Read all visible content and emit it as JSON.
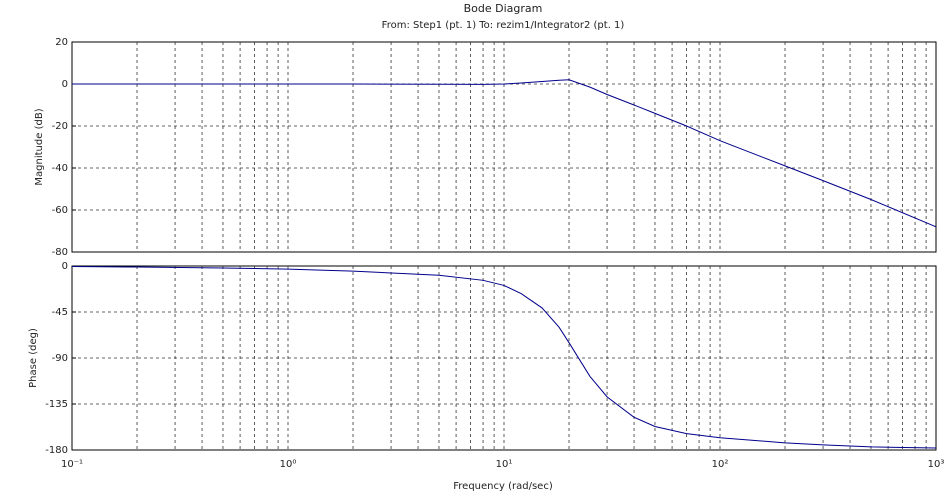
{
  "chart_data": [
    {
      "type": "line",
      "title": "Bode Diagram",
      "subtitle": "From: Step1 (pt. 1)  To: rezim1/Integrator2 (pt. 1)",
      "ylabel": "Magnitude (dB)",
      "xscale": "log",
      "grid": true,
      "color": "#00008b",
      "x": [
        0.1,
        0.2,
        0.5,
        1,
        2,
        5,
        8,
        10,
        12,
        15,
        18,
        20,
        25,
        30,
        40,
        50,
        70,
        100,
        200,
        300,
        500,
        1000
      ],
      "values": [
        0,
        0,
        0,
        0,
        0,
        -0.1,
        -0.2,
        0,
        0.5,
        1.2,
        1.8,
        2,
        -1.5,
        -5,
        -10,
        -14,
        -20,
        -27,
        -39,
        -46,
        -55,
        -68
      ],
      "xlim": [
        0.1,
        1000
      ],
      "ylim": [
        -80,
        20
      ],
      "yticks": [
        20,
        0,
        -20,
        -40,
        -60,
        -80
      ]
    },
    {
      "type": "line",
      "ylabel": "Phase (deg)",
      "xlabel": "Frequency  (rad/sec)",
      "xscale": "log",
      "grid": true,
      "color": "#00008b",
      "x": [
        0.1,
        0.2,
        0.5,
        1,
        2,
        5,
        8,
        10,
        12,
        15,
        18,
        20,
        25,
        30,
        40,
        50,
        70,
        100,
        200,
        300,
        500,
        1000
      ],
      "values": [
        -0.5,
        -1,
        -2,
        -3,
        -5,
        -9,
        -14,
        -19,
        -27,
        -41,
        -60,
        -75,
        -108,
        -128,
        -148,
        -157,
        -164,
        -168,
        -173,
        -175,
        -177,
        -178
      ],
      "xlim": [
        0.1,
        1000
      ],
      "ylim": [
        -180,
        0
      ],
      "yticks": [
        0,
        -45,
        -90,
        -135,
        -180
      ],
      "xticks": [
        {
          "value": 0.1,
          "label": "10⁻¹"
        },
        {
          "value": 1,
          "label": "10⁰"
        },
        {
          "value": 10,
          "label": "10¹"
        },
        {
          "value": 100,
          "label": "10²"
        },
        {
          "value": 1000,
          "label": "10³"
        }
      ]
    }
  ]
}
